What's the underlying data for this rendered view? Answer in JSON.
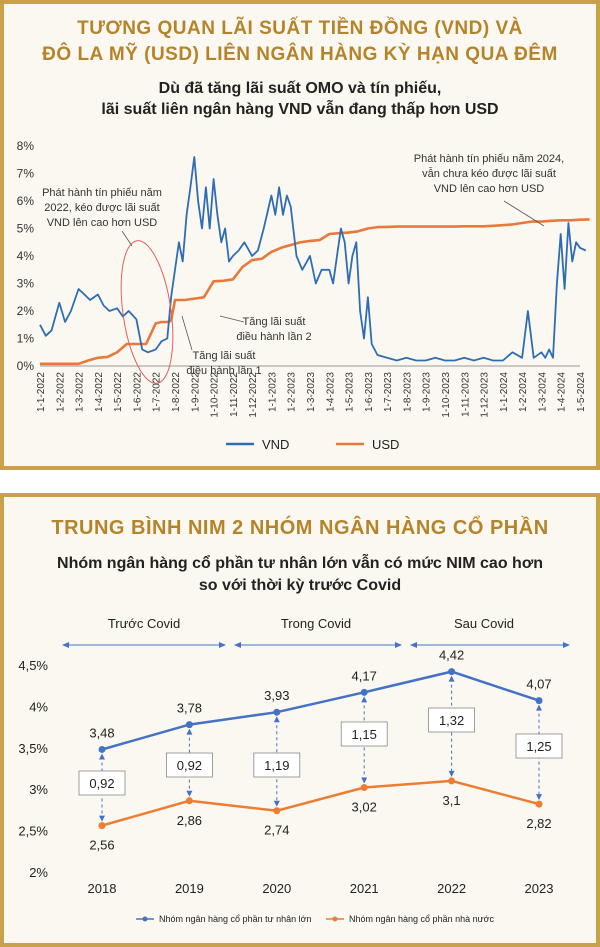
{
  "top": {
    "title_line1": "TƯƠNG QUAN LÃI SUẤT TIỀN ĐỒNG (VND) VÀ",
    "title_line2": "ĐÔ LA MỸ (USD) LIÊN NGÂN HÀNG KỲ HẠN QUA ĐÊM",
    "subtitle_line1": "Dù đã tăng lãi suất OMO và tín phiếu,",
    "subtitle_line2": "lãi suất liên ngân hàng VND vẫn đang thấp hơn USD",
    "annotations": {
      "a1": [
        "Phát hành tín phiếu năm",
        "2022, kéo được lãi suất",
        "VND lên cao hơn USD"
      ],
      "a2": [
        "Phát hành tín phiếu năm 2024,",
        "vẫn chưa kéo được lãi suất",
        "VND lên cao hơn USD"
      ],
      "a3": [
        "Tăng lãi suất",
        "điều hành lần 2"
      ],
      "a4": [
        "Tăng lãi suất",
        "điều hành lần 1"
      ]
    }
  },
  "bottom": {
    "title": "TRUNG BÌNH NIM 2 NHÓM NGÂN HÀNG CỔ PHẦN",
    "subtitle_line1": "Nhóm ngân hàng cổ phần tư nhân lớn vẫn có mức NIM cao hơn",
    "subtitle_line2": "so với thời kỳ trước Covid",
    "periods": [
      "Trước Covid",
      "Trong Covid",
      "Sau Covid"
    ]
  },
  "colors": {
    "vnd": "#2e6db4",
    "usd": "#e8793a",
    "private": "#4472c4",
    "state": "#ed7d31",
    "gold": "#b5842a"
  },
  "chart_data": [
    {
      "type": "line",
      "y_ticks": [
        "0%",
        "1%",
        "2%",
        "3%",
        "4%",
        "5%",
        "6%",
        "7%",
        "8%"
      ],
      "ylim": [
        0,
        8
      ],
      "x_ticks": [
        "1-1-2022",
        "1-2-2022",
        "1-3-2022",
        "1-4-2022",
        "1-5-2022",
        "1-6-2022",
        "1-7-2022",
        "1-8-2022",
        "1-9-2022",
        "1-10-2022",
        "1-11-2022",
        "1-12-2022",
        "1-1-2023",
        "1-2-2023",
        "1-3-2023",
        "1-4-2023",
        "1-5-2023",
        "1-6-2023",
        "1-7-2023",
        "1-8-2023",
        "1-9-2023",
        "1-10-2023",
        "1-11-2023",
        "1-12-2023",
        "1-1-2024",
        "1-2-2024",
        "1-3-2024",
        "1-4-2024",
        "1-5-2024"
      ],
      "legend": "bottom",
      "series": [
        {
          "name": "VND",
          "x": [
            0,
            0.3,
            0.6,
            1,
            1.3,
            1.6,
            2,
            2.3,
            2.6,
            3,
            3.3,
            3.6,
            4,
            4.3,
            4.6,
            5,
            5.3,
            5.6,
            6,
            6.3,
            6.6,
            6.8,
            7,
            7.2,
            7.4,
            7.6,
            7.8,
            8,
            8.2,
            8.4,
            8.6,
            8.8,
            9,
            9.2,
            9.4,
            9.6,
            9.8,
            10,
            10.3,
            10.6,
            11,
            11.3,
            11.6,
            12,
            12.2,
            12.4,
            12.6,
            12.8,
            13,
            13.3,
            13.6,
            14,
            14.3,
            14.6,
            15,
            15.2,
            15.4,
            15.6,
            15.8,
            16,
            16.2,
            16.4,
            16.6,
            16.8,
            17,
            17.2,
            17.5,
            18,
            18.5,
            19,
            19.5,
            20,
            20.5,
            21,
            21.5,
            22,
            22.5,
            23,
            23.5,
            24,
            24.5,
            25,
            25.3,
            25.6,
            26,
            26.2,
            26.4,
            26.6,
            26.8,
            27,
            27.2,
            27.4,
            27.6,
            27.8,
            28,
            28.3
          ],
          "y": [
            1.5,
            1.1,
            1.3,
            2.3,
            1.6,
            2.0,
            2.8,
            2.6,
            2.4,
            2.6,
            2.2,
            2.0,
            2.1,
            1.8,
            2.0,
            1.7,
            0.6,
            0.5,
            0.6,
            0.9,
            1.0,
            2.5,
            3.5,
            4.5,
            3.8,
            5.5,
            6.5,
            7.6,
            6.0,
            5.0,
            6.5,
            5.0,
            6.8,
            5.5,
            4.5,
            5.0,
            3.8,
            4.0,
            4.2,
            4.5,
            4.0,
            4.2,
            5.0,
            6.2,
            5.5,
            6.5,
            5.5,
            6.2,
            5.8,
            4.0,
            3.5,
            4.0,
            3.0,
            3.5,
            3.5,
            3.0,
            4.0,
            5.0,
            4.5,
            3.0,
            4.0,
            4.5,
            2.0,
            1.0,
            2.5,
            0.8,
            0.4,
            0.3,
            0.2,
            0.3,
            0.2,
            0.2,
            0.3,
            0.2,
            0.2,
            0.3,
            0.2,
            0.3,
            0.2,
            0.2,
            0.5,
            0.3,
            2.0,
            0.3,
            0.5,
            0.3,
            0.6,
            0.3,
            3.0,
            4.8,
            2.8,
            5.2,
            3.8,
            4.5,
            4.3,
            4.2
          ]
        },
        {
          "name": "USD",
          "x": [
            0,
            1,
            2,
            2.5,
            3,
            3.5,
            4,
            4.5,
            5,
            5.5,
            6,
            6.3,
            6.6,
            6.8,
            7,
            7.5,
            8,
            8.5,
            9,
            9.5,
            10,
            10.5,
            11,
            11.5,
            12,
            12.5,
            13,
            13.5,
            14,
            14.5,
            15,
            15.5,
            16,
            16.5,
            17,
            17.5,
            18,
            18.5,
            19,
            19.5,
            20,
            20.5,
            21,
            21.5,
            22,
            22.5,
            23,
            23.5,
            24,
            24.5,
            25,
            25.5,
            26,
            26.5,
            27,
            27.5,
            28,
            28.5
          ],
          "y": [
            0.08,
            0.08,
            0.08,
            0.2,
            0.3,
            0.33,
            0.5,
            0.8,
            0.8,
            0.8,
            1.55,
            1.6,
            1.6,
            1.65,
            2.4,
            2.4,
            2.45,
            2.5,
            3.08,
            3.1,
            3.15,
            3.6,
            3.85,
            3.9,
            4.15,
            4.3,
            4.4,
            4.5,
            4.55,
            4.58,
            4.8,
            4.83,
            4.85,
            4.9,
            5.0,
            5.05,
            5.06,
            5.07,
            5.07,
            5.07,
            5.07,
            5.07,
            5.07,
            5.07,
            5.08,
            5.08,
            5.08,
            5.1,
            5.12,
            5.15,
            5.2,
            5.25,
            5.25,
            5.28,
            5.3,
            5.3,
            5.32,
            5.33
          ]
        }
      ]
    },
    {
      "type": "line",
      "categories": [
        "2018",
        "2019",
        "2020",
        "2021",
        "2022",
        "2023"
      ],
      "y_ticks": [
        "2%",
        "2,5%",
        "3%",
        "3,5%",
        "4%",
        "4,5%"
      ],
      "ylim": [
        2,
        4.5
      ],
      "legend": "bottom",
      "series": [
        {
          "name": "Nhóm ngân hàng cổ phần tư nhân lớn",
          "values": [
            3.48,
            3.78,
            3.93,
            4.17,
            4.42,
            4.07
          ],
          "labels": [
            "3,48",
            "3,78",
            "3,93",
            "4,17",
            "4,42",
            "4,07"
          ]
        },
        {
          "name": "Nhóm ngân hàng cổ phần nhà nước",
          "values": [
            2.56,
            2.86,
            2.74,
            3.02,
            3.1,
            2.82
          ],
          "labels": [
            "2,56",
            "2,86",
            "2,74",
            "3,02",
            "3,1",
            "2,82"
          ]
        }
      ],
      "gaps": [
        "0,92",
        "0,92",
        "1,19",
        "1,15",
        "1,32",
        "1,25"
      ]
    }
  ]
}
